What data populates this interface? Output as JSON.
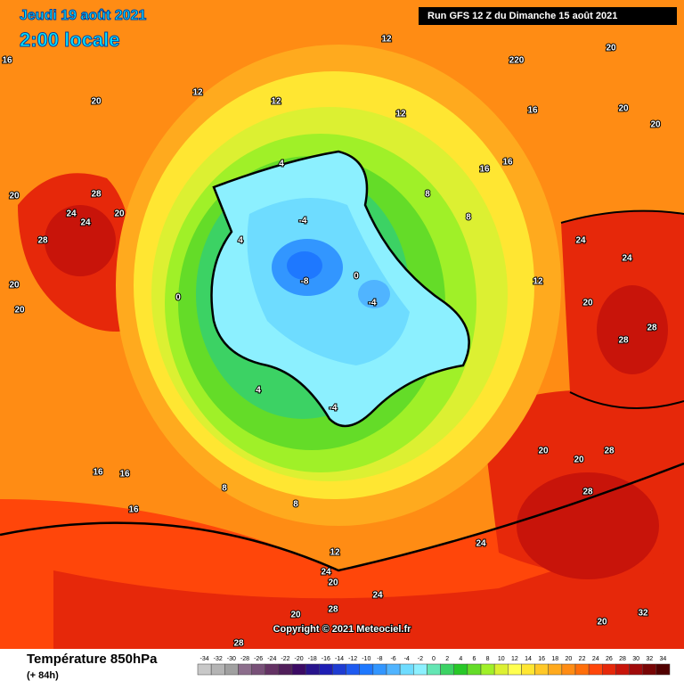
{
  "header": {
    "date": "Jeudi 19 août 2021",
    "time": "2:00 locale",
    "run": "Run GFS 12 Z du Dimanche 15 août 2021"
  },
  "copyright": "Copyright © 2021 Meteociel.fr",
  "legend": {
    "title": "Température 850hPa",
    "subtitle": "(+ 84h)",
    "ticks": [
      -34,
      -32,
      -30,
      -28,
      -26,
      -24,
      -22,
      -20,
      -18,
      -16,
      -14,
      -12,
      -10,
      -8,
      -6,
      -4,
      -2,
      0,
      2,
      4,
      6,
      8,
      10,
      12,
      14,
      16,
      18,
      20,
      22,
      24,
      26,
      28,
      30,
      32,
      34
    ],
    "colors": [
      "#c8c8c8",
      "#b4b4b4",
      "#a0a0a0",
      "#8c6e8c",
      "#785078",
      "#643264",
      "#501e5a",
      "#3c0a64",
      "#28148c",
      "#1e1eb4",
      "#1e3cd2",
      "#1e5af0",
      "#1e78ff",
      "#3296ff",
      "#50b4ff",
      "#6edcff",
      "#8cf0ff",
      "#64e6b4",
      "#3cd264",
      "#28c828",
      "#64dc28",
      "#a0f028",
      "#dcf032",
      "#ffff50",
      "#ffe632",
      "#ffc828",
      "#ffaa1e",
      "#ff8c14",
      "#ff6e0a",
      "#ff460a",
      "#e6280a",
      "#c8140a",
      "#a00a0a",
      "#780505",
      "#500000"
    ]
  },
  "map_labels": [
    16,
    20,
    20,
    28,
    24,
    24,
    20,
    28,
    20,
    20,
    16,
    16,
    16,
    12,
    12,
    12,
    16,
    20,
    20,
    16,
    16,
    12,
    8,
    8,
    12,
    24,
    24,
    28,
    28,
    20,
    20,
    20,
    28,
    28,
    24,
    24,
    20,
    24,
    28,
    28,
    20,
    20,
    32,
    -8,
    -4,
    -4,
    0,
    4,
    4,
    0,
    8,
    8,
    12,
    4,
    -4,
    220,
    20
  ]
}
